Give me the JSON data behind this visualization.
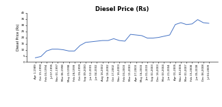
{
  "title": "Diesel Price (Rs)",
  "ylabel": "Diesel Price (Rs)",
  "ylim": [
    0,
    40
  ],
  "yticks": [
    0,
    5,
    10,
    15,
    20,
    25,
    30,
    35,
    40
  ],
  "line_color": "#4472C4",
  "bg_color": "#FFFFFF",
  "plot_bg": "#FFFFFF",
  "x_labels": [
    "Apr 1,1989",
    "Oct 15,1990",
    "Feb 03,1994",
    "Jul 07,1995",
    "Nov 01,1997",
    "Mar 06,1998",
    "May 23,1998",
    "Feb 28,1999",
    "Oct 06,1999",
    "Sep 09,2000",
    "Jun 12,2001",
    "Jun 04,2002",
    "Aug 16,2002",
    "Sep 16,2002",
    "Oct 17,2002",
    "Nov 16,2003",
    "Feb 03,2003",
    "Mar 15,2003",
    "Apr 27,2003",
    "May 16,2003",
    "Jan 01,2003",
    "Sep 01,2003",
    "Dec 16,2003",
    "Mar 03,2004",
    "Jun 21,2004",
    "Apr 01,2005",
    "Nov 30,2006",
    "Mar 01,2007",
    "Feb 15,2008",
    "Jun 05,2008",
    "Dec 06,2008",
    "Jul 02,2009"
  ],
  "values": [
    3.5,
    4.5,
    9.0,
    10.5,
    10.5,
    10.0,
    9.0,
    9.0,
    13.5,
    16.0,
    16.5,
    17.0,
    17.5,
    17.5,
    19.0,
    17.5,
    17.0,
    22.5,
    22.0,
    21.5,
    19.5,
    19.5,
    20.0,
    21.0,
    22.0,
    30.5,
    32.0,
    30.5,
    31.0,
    34.5,
    32.0,
    31.5
  ],
  "title_fontsize": 6,
  "ylabel_fontsize": 3.5,
  "tick_fontsize": 3.0,
  "xtick_fontsize": 2.8,
  "linewidth": 0.7
}
